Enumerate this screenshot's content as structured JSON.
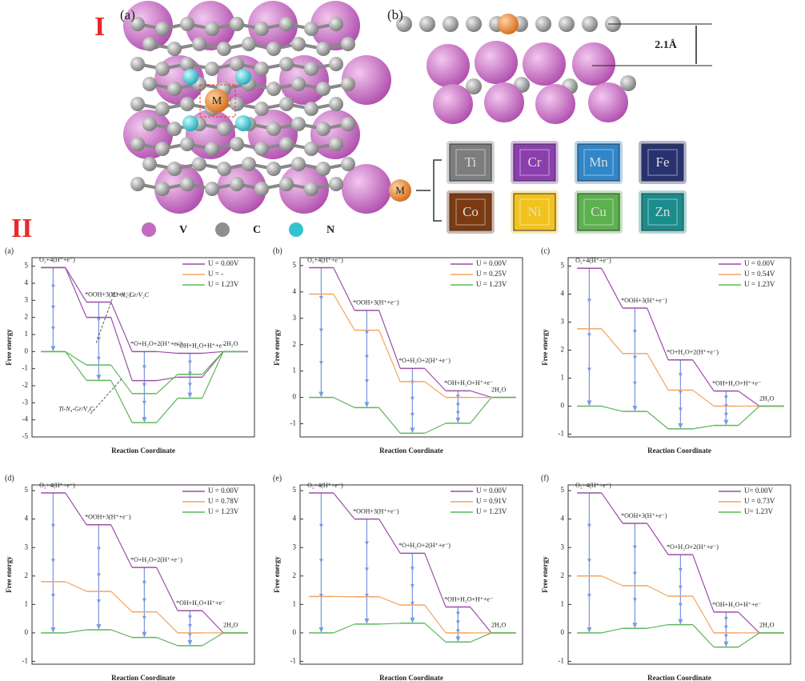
{
  "figure": {
    "section_1": "I",
    "section_2": "II",
    "panel_a": "(a)",
    "panel_b": "(b)",
    "distance": "2.1Å",
    "metal_center": "M",
    "metal": "M",
    "elements": [
      "Ti",
      "Cr",
      "Mn",
      "Fe",
      "Co",
      "Ni",
      "Cu",
      "Zn"
    ],
    "element_colors": [
      "#7d7d7d",
      "#8b3fae",
      "#2f86c8",
      "#283270",
      "#7a3a12",
      "#f2c21f",
      "#5cb04e",
      "#1b8c8c"
    ],
    "legend": [
      "V",
      "C",
      "N"
    ],
    "legend_colors": [
      "#c36bc0",
      "#8f8f8f",
      "#33c3cf"
    ]
  },
  "chart_data": [
    {
      "type": "step",
      "title": "(a)",
      "ylabel": "Free energy",
      "xlabel": "Reaction Coordinate",
      "categories": [
        "O₂+4(H⁺+e⁻)",
        "*OOH+3(H⁺+e⁻)",
        "*O+H₂O+2(H⁺+e⁻)",
        "*OH+H₂O+H⁺+e⁻",
        "2H₂O"
      ],
      "annotations": [
        "Cr-N₄-Gr/V₂C",
        "Ti-N₄-Gr/V₂C"
      ],
      "series": [
        {
          "name": "U = 0.00V",
          "color": "#9b4fa8",
          "values": [
            4.92,
            2.9,
            0,
            -0.1,
            0
          ]
        },
        {
          "color": "#9b4fa8",
          "values": [
            4.92,
            2.0,
            -1.7,
            -1.5,
            0
          ]
        },
        {
          "name": "U = -",
          "color": "#f4a460",
          "values": [
            null,
            null,
            null,
            null,
            null
          ]
        },
        {
          "name": "U = 1.23V",
          "color": "#5cb85c",
          "values": [
            0,
            -0.79,
            -2.46,
            -1.33,
            0
          ]
        },
        {
          "color": "#5cb85c",
          "values": [
            0,
            -1.69,
            -4.16,
            -2.73,
            0
          ]
        }
      ],
      "ylim": [
        -5,
        5.5
      ],
      "yticks": [
        -5,
        -4,
        -3,
        -2,
        -1,
        0,
        1,
        2,
        3,
        4,
        5
      ]
    },
    {
      "type": "step",
      "title": "(b)",
      "ylabel": "Free energy",
      "xlabel": "Reaction Coordinate",
      "categories": [
        "O₂+4(H⁺+e⁻)",
        "*OOH+3(H⁺+e⁻)",
        "*O+H₂O+2(H⁺+e⁻)",
        "*OH+H₂O+H⁺+e⁻",
        "2H₂O"
      ],
      "series": [
        {
          "name": "U = 0.00V",
          "color": "#9b4fa8",
          "values": [
            4.92,
            3.3,
            1.1,
            0.25,
            0
          ]
        },
        {
          "name": "U = 0.25V",
          "color": "#f4a460",
          "values": [
            3.92,
            2.55,
            0.6,
            0,
            0
          ]
        },
        {
          "name": "U = 1.23V",
          "color": "#5cb85c",
          "values": [
            0,
            -0.39,
            -1.36,
            -0.98,
            0
          ]
        }
      ],
      "ylim": [
        -1.5,
        5.3
      ],
      "yticks": [
        -1,
        0,
        1,
        2,
        3,
        4,
        5
      ]
    },
    {
      "type": "step",
      "title": "(c)",
      "ylabel": "Free energy",
      "xlabel": "Reaction Coordinate",
      "categories": [
        "O₂+4(H⁺+e⁻)",
        "*OOH+3(H⁺+e⁻)",
        "*O+H₂O+2(H⁺+e⁻)",
        "*OH+H₂O+H⁺+e⁻",
        "2H₂O"
      ],
      "series": [
        {
          "name": "U = 0.00V",
          "color": "#9b4fa8",
          "values": [
            4.92,
            3.5,
            1.65,
            0.54,
            0
          ]
        },
        {
          "name": "U = 0.54V",
          "color": "#f4a460",
          "values": [
            2.76,
            1.88,
            0.57,
            0,
            0
          ]
        },
        {
          "name": "U = 1.23V",
          "color": "#5cb85c",
          "values": [
            0,
            -0.19,
            -0.81,
            -0.69,
            0
          ]
        }
      ],
      "ylim": [
        -1.1,
        5.3
      ],
      "yticks": [
        -1,
        0,
        1,
        2,
        3,
        4,
        5
      ]
    },
    {
      "type": "step",
      "title": "(d)",
      "ylabel": "Free energy",
      "xlabel": "Reaction Coordinate",
      "categories": [
        "O₂+4(H⁺+e⁻)",
        "*OOH+3(H⁺+e⁻)",
        "*O+H₂O+2(H⁺+e⁻)",
        "*OH+H₂O+H⁺+e⁻",
        "2H₂O"
      ],
      "series": [
        {
          "name": "U = 0.00V",
          "color": "#9b4fa8",
          "values": [
            4.92,
            3.8,
            2.3,
            0.78,
            0
          ]
        },
        {
          "name": "U = 0.78V",
          "color": "#f4a460",
          "values": [
            1.8,
            1.46,
            0.74,
            0,
            0
          ]
        },
        {
          "name": "U = 1.23V",
          "color": "#5cb85c",
          "values": [
            0,
            0.11,
            -0.16,
            -0.45,
            0
          ]
        }
      ],
      "ylim": [
        -1.1,
        5.2
      ],
      "yticks": [
        -1,
        0,
        1,
        2,
        3,
        4,
        5
      ]
    },
    {
      "type": "step",
      "title": "(e)",
      "ylabel": "Free energy",
      "xlabel": "Reaction Coordinate",
      "categories": [
        "O₂+4(H⁺+e⁻)",
        "*OOH+3(H⁺+e⁻)",
        "*O+H₂O+2(H⁺+e⁻)",
        "*OH+H₂O+H⁺+e⁻",
        "2H₂O"
      ],
      "series": [
        {
          "name": "U = 0.00V",
          "color": "#9b4fa8",
          "values": [
            4.92,
            4.0,
            2.8,
            0.91,
            0
          ]
        },
        {
          "name": "U = 0.91V",
          "color": "#f4a460",
          "values": [
            1.28,
            1.27,
            0.98,
            0,
            0
          ]
        },
        {
          "name": "U = 1.23V",
          "color": "#5cb85c",
          "values": [
            0,
            0.31,
            0.34,
            -0.32,
            0
          ]
        }
      ],
      "ylim": [
        -1.1,
        5.2
      ],
      "yticks": [
        -1,
        0,
        1,
        2,
        3,
        4,
        5
      ]
    },
    {
      "type": "step",
      "title": "(f)",
      "ylabel": "Free energy",
      "xlabel": "Reaction Coordinate",
      "categories": [
        "O₂+4(H⁺+e⁻)",
        "*OOH+3(H⁺+e⁻)",
        "*O+H₂O+2(H⁺+e⁻)",
        "*OH+H₂O+H⁺+e⁻",
        "2H₂O"
      ],
      "series": [
        {
          "name": "U= 0.00V",
          "color": "#9b4fa8",
          "values": [
            4.92,
            3.85,
            2.75,
            0.73,
            0
          ]
        },
        {
          "name": "U = 0.73V",
          "color": "#f4a460",
          "values": [
            2.0,
            1.66,
            1.29,
            0,
            0
          ]
        },
        {
          "name": "U= 1.23V",
          "color": "#5cb85c",
          "values": [
            0,
            0.16,
            0.29,
            -0.5,
            0
          ]
        }
      ],
      "ylim": [
        -1.1,
        5.2
      ],
      "yticks": [
        -1,
        0,
        1,
        2,
        3,
        4,
        5
      ]
    }
  ]
}
